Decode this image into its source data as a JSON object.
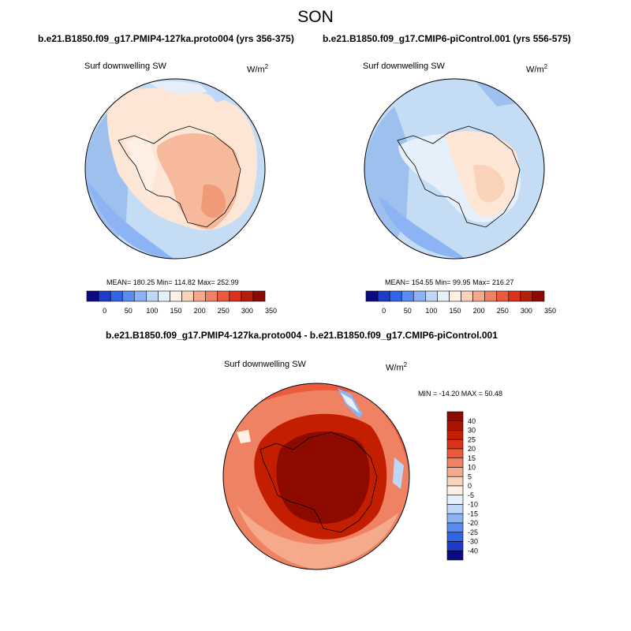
{
  "season": "SON",
  "panels": [
    {
      "case": "b.e21.B1850.f09_g17.PMIP4-127ka.proto004 (yrs 356-375)",
      "variable": "Surf downwelling SW",
      "units": "W/m",
      "units_sup": "2",
      "stats": "MEAN= 180.25  Min= 114.82  Max= 252.99",
      "colorbar": {
        "labels": [
          "0",
          "50",
          "100",
          "150",
          "200",
          "250",
          "300",
          "350"
        ],
        "colors": [
          "#0a0a82",
          "#1e3cc8",
          "#3264e6",
          "#5a8cf0",
          "#8cb4f5",
          "#bed7f8",
          "#e6f0fa",
          "#fff0e6",
          "#fad2b9",
          "#f5aa8c",
          "#f08264",
          "#eb5a3c",
          "#dc3219",
          "#b41e0a",
          "#8c0a00"
        ]
      },
      "shading": "warm"
    },
    {
      "case": "b.e21.B1850.f09_g17.CMIP6-piControl.001 (yrs 556-575)",
      "variable": "Surf downwelling SW",
      "units": "W/m",
      "units_sup": "2",
      "stats": "MEAN= 154.55  Min=  99.95  Max= 216.27",
      "colorbar": {
        "labels": [
          "0",
          "50",
          "100",
          "150",
          "200",
          "250",
          "300",
          "350"
        ],
        "colors": [
          "#0a0a82",
          "#1e3cc8",
          "#3264e6",
          "#5a8cf0",
          "#8cb4f5",
          "#bed7f8",
          "#e6f0fa",
          "#fff0e6",
          "#fad2b9",
          "#f5aa8c",
          "#f08264",
          "#eb5a3c",
          "#dc3219",
          "#b41e0a",
          "#8c0a00"
        ]
      },
      "shading": "cool"
    }
  ],
  "difference": {
    "case": "b.e21.B1850.f09_g17.PMIP4-127ka.proto004 - b.e21.B1850.f09_g17.CMIP6-piControl.001",
    "variable": "Surf downwelling SW",
    "units": "W/m",
    "units_sup": "2",
    "stats": "MIN = -14.20 MAX =  50.48",
    "colorbar": {
      "labels": [
        "40",
        "30",
        "25",
        "20",
        "15",
        "10",
        "5",
        "0",
        "-5",
        "-10",
        "-15",
        "-20",
        "-25",
        "-30",
        "-40"
      ],
      "colors": [
        "#8c0a00",
        "#a81400",
        "#c41e00",
        "#dc3219",
        "#eb5a3c",
        "#f08264",
        "#f5aa8c",
        "#fad2b9",
        "#fff0e6",
        "#e6f0fa",
        "#bed7f8",
        "#8cb4f5",
        "#5a8cf0",
        "#3264e6",
        "#1e3cc8",
        "#0a0a82"
      ]
    }
  }
}
